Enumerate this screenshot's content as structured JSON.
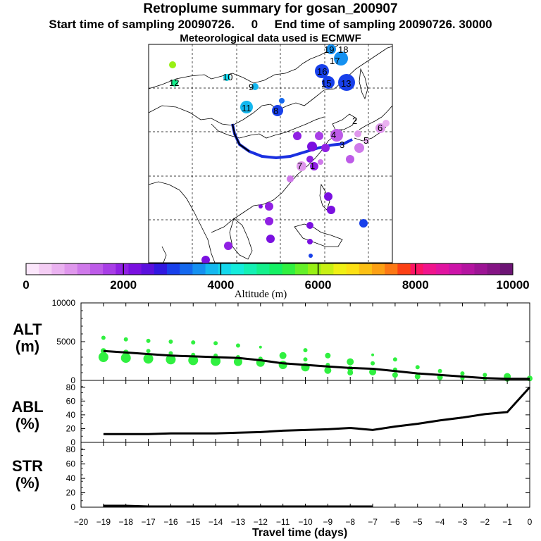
{
  "title": {
    "line1": "Retroplume summary for gosan_200907",
    "line2": "Start time of sampling 20090726.     0     End time of sampling 20090726. 30000",
    "line3": "Meteorological data used is ECMWF"
  },
  "colorbar": {
    "ticks": [
      "0",
      "2000",
      "4000",
      "6000",
      "8000",
      "10000"
    ],
    "label": "Altitude (m)",
    "colors": [
      "#fbe6fb",
      "#f4cdf4",
      "#eab2f0",
      "#df97ec",
      "#cf79ea",
      "#bd5be8",
      "#a83ee6",
      "#9020e3",
      "#7a10e0",
      "#5a10dd",
      "#3018e0",
      "#1840ea",
      "#1468ee",
      "#1490f0",
      "#14b8f0",
      "#14d8ec",
      "#14ecdc",
      "#14f0b4",
      "#14f08c",
      "#14f064",
      "#30f040",
      "#64f028",
      "#98f014",
      "#c8f014",
      "#f0f014",
      "#fce014",
      "#fcc014",
      "#fca014",
      "#fc7814",
      "#fc4014",
      "#fc1464",
      "#f0148c",
      "#e014a0",
      "#cc14a8",
      "#b414a0",
      "#9c1494",
      "#841484",
      "#6c1474"
    ]
  },
  "map_labels": [
    {
      "t": "19"
    },
    {
      "t": "18"
    },
    {
      "t": "17"
    },
    {
      "t": "16"
    },
    {
      "t": "15"
    },
    {
      "t": "13"
    },
    {
      "t": "12"
    },
    {
      "t": "11"
    },
    {
      "t": "10"
    },
    {
      "t": "9"
    },
    {
      "t": "8"
    },
    {
      "t": "7"
    },
    {
      "t": "6"
    },
    {
      "t": "5"
    },
    {
      "t": "4"
    },
    {
      "t": "3"
    },
    {
      "t": "2"
    },
    {
      "t": "1"
    }
  ],
  "chart_data": [
    {
      "type": "line",
      "name": "ALT",
      "ylabel_line1": "ALT",
      "ylabel_line2": "(m)",
      "ylim": [
        0,
        10000
      ],
      "yticks": [
        "10000",
        "5000",
        "0"
      ],
      "x": [
        -19,
        -18,
        -17,
        -16,
        -15,
        -14,
        -13,
        -12,
        -11,
        -10,
        -9,
        -8,
        -7,
        -6,
        -5,
        -4,
        -3,
        -2,
        -1,
        0
      ],
      "values": [
        3800,
        3600,
        3400,
        3200,
        3100,
        3000,
        2900,
        2600,
        2200,
        2000,
        1800,
        1600,
        1500,
        1200,
        900,
        700,
        500,
        300,
        200,
        200
      ],
      "scatter_points": [
        {
          "x": -19,
          "y": 5500,
          "s": 3
        },
        {
          "x": -19,
          "y": 3800,
          "s": 4
        },
        {
          "x": -19,
          "y": 3000,
          "s": 7
        },
        {
          "x": -18,
          "y": 5300,
          "s": 3
        },
        {
          "x": -18,
          "y": 3600,
          "s": 4
        },
        {
          "x": -18,
          "y": 2900,
          "s": 7
        },
        {
          "x": -17,
          "y": 5100,
          "s": 3
        },
        {
          "x": -17,
          "y": 3800,
          "s": 3
        },
        {
          "x": -17,
          "y": 2800,
          "s": 7
        },
        {
          "x": -16,
          "y": 5000,
          "s": 3
        },
        {
          "x": -16,
          "y": 3500,
          "s": 3
        },
        {
          "x": -16,
          "y": 2700,
          "s": 7
        },
        {
          "x": -15,
          "y": 4900,
          "s": 3
        },
        {
          "x": -15,
          "y": 3300,
          "s": 3
        },
        {
          "x": -15,
          "y": 2600,
          "s": 7
        },
        {
          "x": -14,
          "y": 4800,
          "s": 3
        },
        {
          "x": -14,
          "y": 3200,
          "s": 3
        },
        {
          "x": -14,
          "y": 2500,
          "s": 7
        },
        {
          "x": -13,
          "y": 4500,
          "s": 3
        },
        {
          "x": -13,
          "y": 3000,
          "s": 3
        },
        {
          "x": -13,
          "y": 2400,
          "s": 6
        },
        {
          "x": -12,
          "y": 4300,
          "s": 2
        },
        {
          "x": -12,
          "y": 2800,
          "s": 3
        },
        {
          "x": -12,
          "y": 2300,
          "s": 6
        },
        {
          "x": -11,
          "y": 3200,
          "s": 5
        },
        {
          "x": -11,
          "y": 2000,
          "s": 6
        },
        {
          "x": -10,
          "y": 3900,
          "s": 3
        },
        {
          "x": -10,
          "y": 2700,
          "s": 3
        },
        {
          "x": -10,
          "y": 1700,
          "s": 6
        },
        {
          "x": -9,
          "y": 3200,
          "s": 4
        },
        {
          "x": -9,
          "y": 2000,
          "s": 3
        },
        {
          "x": -9,
          "y": 1300,
          "s": 5
        },
        {
          "x": -8,
          "y": 2400,
          "s": 5
        },
        {
          "x": -8,
          "y": 1500,
          "s": 4
        },
        {
          "x": -8,
          "y": 1000,
          "s": 4
        },
        {
          "x": -7,
          "y": 3300,
          "s": 2
        },
        {
          "x": -7,
          "y": 2200,
          "s": 3
        },
        {
          "x": -7,
          "y": 1100,
          "s": 5
        },
        {
          "x": -6,
          "y": 2700,
          "s": 3
        },
        {
          "x": -6,
          "y": 1400,
          "s": 3
        },
        {
          "x": -6,
          "y": 700,
          "s": 4
        },
        {
          "x": -5,
          "y": 1700,
          "s": 3
        },
        {
          "x": -5,
          "y": 500,
          "s": 4
        },
        {
          "x": -4,
          "y": 1200,
          "s": 3
        },
        {
          "x": -4,
          "y": 400,
          "s": 4
        },
        {
          "x": -3,
          "y": 900,
          "s": 3
        },
        {
          "x": -3,
          "y": 300,
          "s": 3
        },
        {
          "x": -2,
          "y": 700,
          "s": 3
        },
        {
          "x": -2,
          "y": 250,
          "s": 3
        },
        {
          "x": -1,
          "y": 500,
          "s": 5
        },
        {
          "x": -1,
          "y": 200,
          "s": 4
        },
        {
          "x": 0,
          "y": 250,
          "s": 4
        }
      ]
    },
    {
      "type": "line",
      "name": "ABL",
      "ylabel_line1": "ABL",
      "ylabel_line2": "(%)",
      "ylim": [
        0,
        90
      ],
      "yticks": [
        "80",
        "60",
        "40",
        "20",
        "0"
      ],
      "x": [
        -19,
        -18,
        -17,
        -16,
        -15,
        -14,
        -13,
        -12,
        -11,
        -10,
        -9,
        -8,
        -7,
        -6,
        -5,
        -4,
        -3,
        -2,
        -1,
        0
      ],
      "values": [
        12,
        12,
        12,
        13,
        13,
        13,
        14,
        15,
        17,
        18,
        19,
        21,
        18,
        23,
        27,
        32,
        36,
        41,
        44,
        80
      ]
    },
    {
      "type": "line",
      "name": "STR",
      "ylabel_line1": "STR",
      "ylabel_line2": "(%)",
      "ylim": [
        0,
        90
      ],
      "yticks": [
        "80",
        "60",
        "40",
        "20",
        "0"
      ],
      "x": [
        -19,
        -18,
        -17,
        -16,
        -15,
        -14,
        -13,
        -12,
        -11,
        -10,
        -9,
        -8,
        -7
      ],
      "values": [
        2,
        2,
        1,
        1,
        1,
        1,
        1,
        1,
        1,
        1,
        1,
        1,
        1
      ]
    }
  ],
  "xaxis": {
    "label": "Travel time (days)",
    "ticks": [
      "−20",
      "−19",
      "−18",
      "−17",
      "−16",
      "−15",
      "−14",
      "−13",
      "−12",
      "−11",
      "−10",
      "−9",
      "−8",
      "−7",
      "−6",
      "−5",
      "−4",
      "−3",
      "−2",
      "−1",
      "0"
    ]
  }
}
